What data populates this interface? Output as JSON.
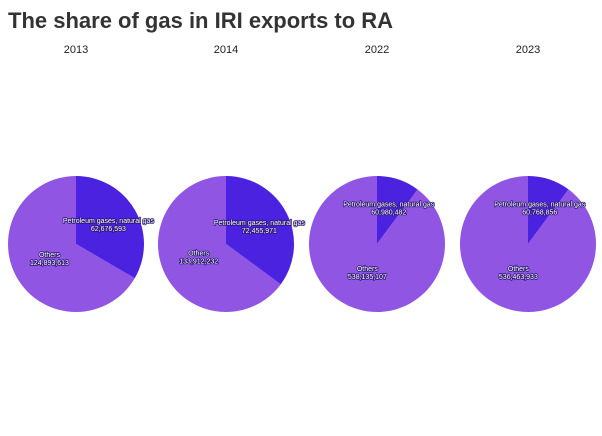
{
  "title": "The share of gas in IRI exports to RA",
  "chart_data": [
    {
      "type": "pie",
      "title": "2013",
      "categories": [
        "Petroleum gases, natural gas",
        "Others"
      ],
      "values": [
        62676593,
        124893613
      ],
      "value_labels": [
        "62,676,593",
        "124,893,613"
      ],
      "colors": [
        "#4a22e0",
        "#9155e3"
      ]
    },
    {
      "type": "pie",
      "title": "2014",
      "categories": [
        "Petroleum gases, natural gas",
        "Others"
      ],
      "values": [
        72455971,
        133912232
      ],
      "value_labels": [
        "72,455,971",
        "133,912,232"
      ],
      "colors": [
        "#4a22e0",
        "#9155e3"
      ]
    },
    {
      "type": "pie",
      "title": "2022",
      "categories": [
        "Petroleum gases, natural gas",
        "Others"
      ],
      "values": [
        60980482,
        538135107
      ],
      "value_labels": [
        "60,980,482",
        "538,135,107"
      ],
      "colors": [
        "#4a22e0",
        "#9155e3"
      ]
    },
    {
      "type": "pie",
      "title": "2023",
      "categories": [
        "Petroleum gases, natural gas",
        "Others"
      ],
      "values": [
        60768856,
        536463933
      ],
      "value_labels": [
        "60,768,856",
        "536,463,933"
      ],
      "colors": [
        "#4a22e0",
        "#9155e3"
      ]
    }
  ]
}
